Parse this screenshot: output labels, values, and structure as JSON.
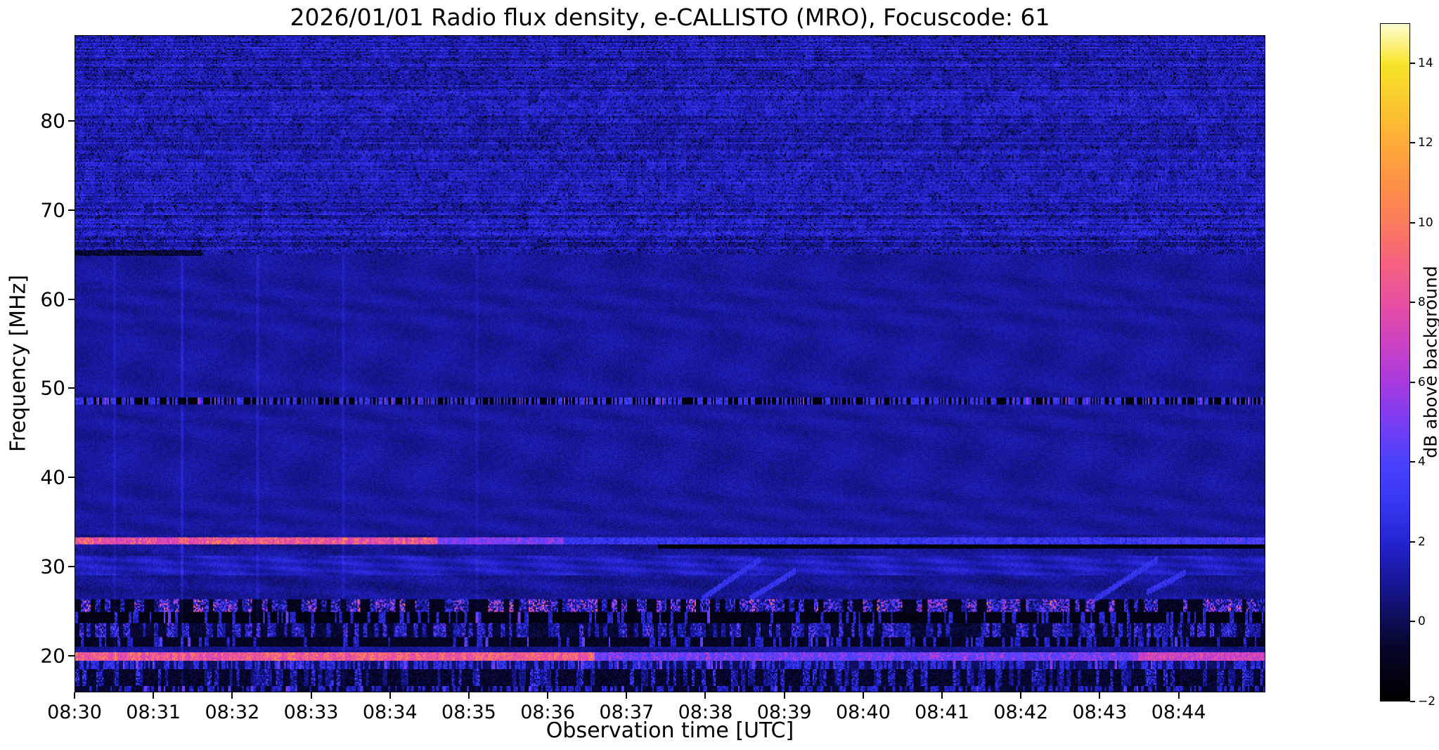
{
  "chart_data": {
    "type": "heatmap",
    "title": "2026/01/01  Radio flux density, e-CALLISTO (MRO), Focuscode: 61",
    "date": "2026/01/01",
    "instrument": "e-CALLISTO (MRO)",
    "focuscode": "61",
    "xlabel": "Observation time [UTC]",
    "ylabel": "Frequency [MHz]",
    "x_tick_labels": [
      "08:30",
      "08:31",
      "08:32",
      "08:33",
      "08:34",
      "08:35",
      "08:36",
      "08:37",
      "08:38",
      "08:39",
      "08:40",
      "08:41",
      "08:42",
      "08:43",
      "08:44"
    ],
    "y_tick_values": [
      20,
      30,
      40,
      50,
      60,
      70,
      80
    ],
    "time_start_utc": "08:30",
    "duration_minutes": 15.1,
    "freq_range_mhz": [
      15.9,
      89.6
    ],
    "value_range_db": [
      -2,
      15
    ],
    "colorbar": {
      "label": "dB above background",
      "ticks": [
        {
          "v": 14,
          "label": "14"
        },
        {
          "v": 12,
          "label": "12"
        },
        {
          "v": 10,
          "label": "10"
        },
        {
          "v": 8,
          "label": "8"
        },
        {
          "v": 6,
          "label": "6"
        },
        {
          "v": 4,
          "label": "4"
        },
        {
          "v": 2,
          "label": "2"
        },
        {
          "v": 0,
          "label": "0"
        },
        {
          "v": -2,
          "label": "−2"
        }
      ]
    },
    "colormap_stops": [
      {
        "v": -2,
        "c": "#000000"
      },
      {
        "v": -0.7,
        "c": "#06062a"
      },
      {
        "v": 0,
        "c": "#0d0d55"
      },
      {
        "v": 1,
        "c": "#17179a"
      },
      {
        "v": 2,
        "c": "#2525d2"
      },
      {
        "v": 3,
        "c": "#3838f2"
      },
      {
        "v": 4,
        "c": "#4b42fb"
      },
      {
        "v": 5,
        "c": "#7a3df2"
      },
      {
        "v": 6,
        "c": "#a83ae0"
      },
      {
        "v": 7,
        "c": "#cc42c2"
      },
      {
        "v": 8,
        "c": "#e84fa2"
      },
      {
        "v": 9,
        "c": "#f66180"
      },
      {
        "v": 10,
        "c": "#fb7b5e"
      },
      {
        "v": 11,
        "c": "#fd9246"
      },
      {
        "v": 12,
        "c": "#fdab38"
      },
      {
        "v": 13,
        "c": "#f9c92e"
      },
      {
        "v": 14,
        "c": "#f7e428"
      },
      {
        "v": 15,
        "c": "#fdfdd0"
      }
    ],
    "background_zones": [
      {
        "name": "upper-striped-noise",
        "f": [
          65,
          89.6
        ],
        "base_db": 1.55
      },
      {
        "name": "mid-quiet-blue",
        "f": [
          33.5,
          65
        ],
        "base_db": 1.05
      },
      {
        "name": "low-textured",
        "f": [
          15.9,
          33.5
        ],
        "base_db": 0.9
      }
    ],
    "bands": [
      {
        "name": "dark-segment-65MHz",
        "f": [
          64.9,
          65.5
        ],
        "kind": "profile",
        "seed": 11,
        "profile": [
          [
            0,
            1.6,
            -0.6,
            0
          ]
        ]
      },
      {
        "name": "dashed-line-48.5MHz",
        "f": [
          48.25,
          48.95
        ],
        "kind": "dashes",
        "seed": 21,
        "rate": 55,
        "duty": 0.5,
        "bright": 2.8,
        "dark": -1.7
      },
      {
        "name": "bright-line-33MHz",
        "f": [
          32.45,
          33.25
        ],
        "kind": "profile",
        "seed": 31,
        "profile": [
          [
            0,
            4.6,
            7,
            4.5
          ],
          [
            4.6,
            6.2,
            4.5,
            2
          ],
          [
            6.2,
            13.6,
            2.6,
            1.5
          ],
          [
            13.6,
            15.2,
            3.2,
            1.5
          ]
        ]
      },
      {
        "name": "black-band-32MHz",
        "f": [
          31.95,
          32.45
        ],
        "kind": "profile",
        "seed": 41,
        "profile": [
          [
            7.4,
            15.2,
            -1.8,
            0
          ]
        ]
      },
      {
        "name": "wavy-band-30MHz",
        "f": [
          28.9,
          31.2
        ],
        "kind": "wavy",
        "seed": 51,
        "base": 1.6,
        "amp": 0.7
      },
      {
        "name": "rfi-burst-band-25.5MHz",
        "f": [
          24.85,
          26.25
        ],
        "kind": "bursts",
        "seed": 61,
        "rate": 16,
        "prob": 0.62,
        "base": -1.0,
        "max": 11
      },
      {
        "name": "dark-dash-band-24MHz",
        "f": [
          23.6,
          24.85
        ],
        "kind": "dashes",
        "seed": 71,
        "rate": 34,
        "duty": 0.2,
        "bright": 2.0,
        "dark": -1.3
      },
      {
        "name": "rfi-burst-band-22.8MHz",
        "f": [
          22.1,
          23.6
        ],
        "kind": "bursts",
        "seed": 81,
        "rate": 20,
        "prob": 0.45,
        "base": -0.5,
        "max": 6
      },
      {
        "name": "dash-band-21.5MHz",
        "f": [
          21.0,
          22.1
        ],
        "kind": "dashes",
        "seed": 91,
        "rate": 30,
        "duty": 0.3,
        "bright": 1.8,
        "dark": -0.9
      },
      {
        "name": "bright-band-19.8MHz",
        "f": [
          19.35,
          20.35
        ],
        "kind": "profile",
        "seed": 101,
        "profile": [
          [
            0,
            6.6,
            7.5,
            4
          ],
          [
            6.6,
            13.5,
            4,
            3
          ],
          [
            13.5,
            15.2,
            6.5,
            2
          ]
        ]
      },
      {
        "name": "blue-band-18.8MHz",
        "f": [
          18.4,
          19.35
        ],
        "kind": "dashes",
        "seed": 111,
        "rate": 40,
        "duty": 0.55,
        "bright": 2.3,
        "dark": 0.2
      },
      {
        "name": "rfi-band-17.5MHz",
        "f": [
          16.6,
          18.4
        ],
        "kind": "bursts",
        "seed": 121,
        "rate": 22,
        "prob": 0.4,
        "base": -0.7,
        "max": 4.5
      },
      {
        "name": "bottom-band-16MHz",
        "f": [
          15.9,
          16.6
        ],
        "kind": "dashes",
        "seed": 131,
        "rate": 34,
        "duty": 0.45,
        "bright": 1.8,
        "dark": -0.6
      }
    ],
    "streaks": [
      {
        "t0": 7.95,
        "dur": 0.75,
        "f0": 26.3,
        "f1": 30.8
      },
      {
        "t0": 8.55,
        "dur": 0.6,
        "f0": 26.3,
        "f1": 29.5
      },
      {
        "t0": 12.95,
        "dur": 0.8,
        "f0": 26.3,
        "f1": 30.8
      },
      {
        "t0": 13.6,
        "dur": 0.5,
        "f0": 27.0,
        "f1": 29.3
      }
    ],
    "vlines": [
      {
        "t": 0.5,
        "a": 0.5
      },
      {
        "t": 1.35,
        "a": 0.8
      },
      {
        "t": 2.32,
        "a": 0.6
      },
      {
        "t": 3.4,
        "a": 0.5
      },
      {
        "t": 5.1,
        "a": 0.4
      }
    ]
  }
}
